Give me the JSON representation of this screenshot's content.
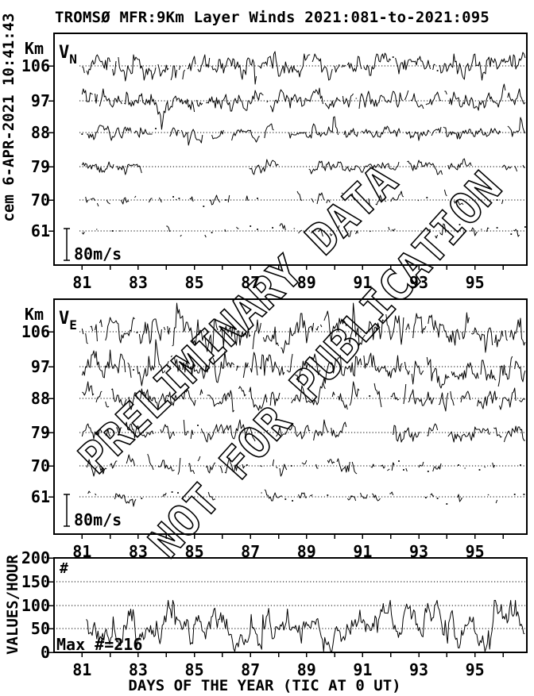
{
  "header": {
    "title": "TROMSØ MFR:9Km Layer Winds 2021:081-to-2021:095",
    "side_note": "cem 6-APR-2021 10:41:43"
  },
  "watermark": {
    "line1": "PRELIMINARY DATA",
    "line2": "NOT FOR PUBLICATION"
  },
  "x_axis": {
    "title": "DAYS OF THE YEAR (TIC AT 0 UT)",
    "range_days": [
      80,
      96.85
    ],
    "data_start_day": 81.0,
    "data_end_day": 96.8,
    "tick_days": [
      81,
      82,
      83,
      84,
      85,
      86,
      87,
      88,
      89,
      90,
      91,
      92,
      93,
      94,
      95,
      96
    ],
    "labeled_tick_days": [
      81,
      83,
      85,
      87,
      89,
      91,
      93,
      95
    ]
  },
  "chart_data": [
    {
      "type": "line",
      "panel": "vn",
      "title": "Northward wind component, hourly traces per altitude layer",
      "label_main": "V",
      "label_sub": "N",
      "y_axis_unit": "Km",
      "scale_bar_label": "80m/s",
      "scale_bar_ms": 80,
      "levels": [
        {
          "altitude_km": 106,
          "amplitude_ms": 16,
          "coverage": 0.95,
          "seed": 101
        },
        {
          "altitude_km": 97,
          "amplitude_ms": 13,
          "coverage": 0.93,
          "seed": 102
        },
        {
          "altitude_km": 88,
          "amplitude_ms": 9,
          "coverage": 0.7,
          "seed": 103
        },
        {
          "altitude_km": 79,
          "amplitude_ms": 8,
          "coverage": 0.58,
          "seed": 104
        },
        {
          "altitude_km": 70,
          "amplitude_ms": 8,
          "coverage": 0.3,
          "seed": 105
        },
        {
          "altitude_km": 61,
          "amplitude_ms": 7,
          "coverage": 0.25,
          "seed": 106
        }
      ]
    },
    {
      "type": "line",
      "panel": "ve",
      "title": "Eastward wind component, hourly traces per altitude layer",
      "label_main": "V",
      "label_sub": "E",
      "y_axis_unit": "Km",
      "scale_bar_label": "80m/s",
      "scale_bar_ms": 80,
      "levels": [
        {
          "altitude_km": 106,
          "amplitude_ms": 22,
          "coverage": 0.96,
          "seed": 201
        },
        {
          "altitude_km": 97,
          "amplitude_ms": 18,
          "coverage": 0.95,
          "seed": 202
        },
        {
          "altitude_km": 88,
          "amplitude_ms": 13,
          "coverage": 0.85,
          "seed": 203
        },
        {
          "altitude_km": 79,
          "amplitude_ms": 12,
          "coverage": 0.75,
          "seed": 204
        },
        {
          "altitude_km": 70,
          "amplitude_ms": 9,
          "coverage": 0.33,
          "seed": 205
        },
        {
          "altitude_km": 61,
          "amplitude_ms": 7,
          "coverage": 0.27,
          "seed": 206
        }
      ]
    },
    {
      "type": "line",
      "panel": "values_per_hour",
      "y_label": "VALUES/HOUR",
      "y_ticks": [
        0,
        50,
        100,
        150,
        200
      ],
      "y_max": 200,
      "corner_label": "#",
      "max_annotation": "Max #=216",
      "max_value": 216,
      "typical_range": [
        2,
        110
      ],
      "synthesis": {
        "seed": 301,
        "mean": 48,
        "sigma": 15,
        "persistence": 0.78,
        "spike_prob": 0.015,
        "start_day": 81.15
      }
    }
  ]
}
